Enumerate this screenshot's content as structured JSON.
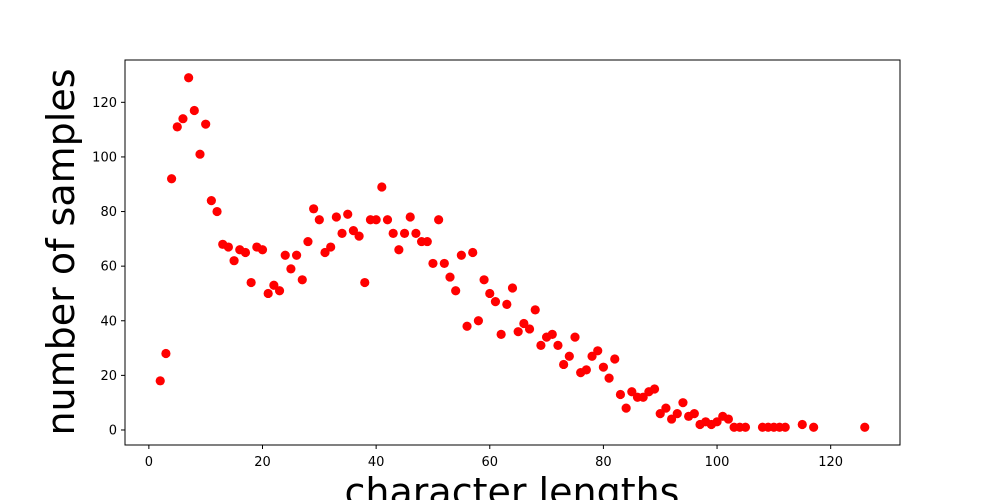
{
  "chart_data": {
    "type": "scatter",
    "title": "",
    "xlabel": "character lengths",
    "ylabel": "number of samples",
    "xlim": [
      -4.2,
      132.2
    ],
    "ylim": [
      -5.5,
      135.5
    ],
    "xticks": [
      0,
      20,
      40,
      60,
      80,
      100,
      120
    ],
    "yticks": [
      0,
      20,
      40,
      60,
      80,
      100,
      120
    ],
    "grid": false,
    "marker_color": "#ff0000",
    "points": [
      [
        2,
        18
      ],
      [
        3,
        28
      ],
      [
        4,
        92
      ],
      [
        5,
        111
      ],
      [
        6,
        114
      ],
      [
        7,
        129
      ],
      [
        8,
        117
      ],
      [
        9,
        101
      ],
      [
        10,
        112
      ],
      [
        11,
        84
      ],
      [
        12,
        80
      ],
      [
        13,
        68
      ],
      [
        14,
        67
      ],
      [
        15,
        62
      ],
      [
        16,
        66
      ],
      [
        17,
        65
      ],
      [
        18,
        54
      ],
      [
        19,
        67
      ],
      [
        20,
        66
      ],
      [
        21,
        50
      ],
      [
        22,
        53
      ],
      [
        23,
        51
      ],
      [
        24,
        64
      ],
      [
        25,
        59
      ],
      [
        26,
        64
      ],
      [
        27,
        55
      ],
      [
        28,
        69
      ],
      [
        29,
        81
      ],
      [
        30,
        77
      ],
      [
        31,
        65
      ],
      [
        32,
        67
      ],
      [
        33,
        78
      ],
      [
        34,
        72
      ],
      [
        35,
        79
      ],
      [
        36,
        73
      ],
      [
        37,
        71
      ],
      [
        38,
        54
      ],
      [
        39,
        77
      ],
      [
        40,
        77
      ],
      [
        41,
        89
      ],
      [
        42,
        77
      ],
      [
        43,
        72
      ],
      [
        44,
        66
      ],
      [
        45,
        72
      ],
      [
        46,
        78
      ],
      [
        47,
        72
      ],
      [
        48,
        69
      ],
      [
        49,
        69
      ],
      [
        50,
        61
      ],
      [
        51,
        77
      ],
      [
        52,
        61
      ],
      [
        53,
        56
      ],
      [
        54,
        51
      ],
      [
        55,
        64
      ],
      [
        56,
        38
      ],
      [
        57,
        65
      ],
      [
        58,
        40
      ],
      [
        59,
        55
      ],
      [
        60,
        50
      ],
      [
        61,
        47
      ],
      [
        62,
        35
      ],
      [
        63,
        46
      ],
      [
        64,
        52
      ],
      [
        65,
        36
      ],
      [
        66,
        39
      ],
      [
        67,
        37
      ],
      [
        68,
        44
      ],
      [
        69,
        31
      ],
      [
        70,
        34
      ],
      [
        71,
        35
      ],
      [
        72,
        31
      ],
      [
        73,
        24
      ],
      [
        74,
        27
      ],
      [
        75,
        34
      ],
      [
        76,
        21
      ],
      [
        77,
        22
      ],
      [
        78,
        27
      ],
      [
        79,
        29
      ],
      [
        80,
        23
      ],
      [
        81,
        19
      ],
      [
        82,
        26
      ],
      [
        83,
        13
      ],
      [
        84,
        8
      ],
      [
        85,
        14
      ],
      [
        86,
        12
      ],
      [
        87,
        12
      ],
      [
        88,
        14
      ],
      [
        89,
        15
      ],
      [
        90,
        6
      ],
      [
        91,
        8
      ],
      [
        92,
        4
      ],
      [
        93,
        6
      ],
      [
        94,
        10
      ],
      [
        95,
        5
      ],
      [
        96,
        6
      ],
      [
        97,
        2
      ],
      [
        98,
        3
      ],
      [
        99,
        2
      ],
      [
        100,
        3
      ],
      [
        101,
        5
      ],
      [
        102,
        4
      ],
      [
        103,
        1
      ],
      [
        104,
        1
      ],
      [
        105,
        1
      ],
      [
        108,
        1
      ],
      [
        109,
        1
      ],
      [
        110,
        1
      ],
      [
        111,
        1
      ],
      [
        112,
        1
      ],
      [
        115,
        2
      ],
      [
        117,
        1
      ],
      [
        126,
        1
      ]
    ]
  }
}
